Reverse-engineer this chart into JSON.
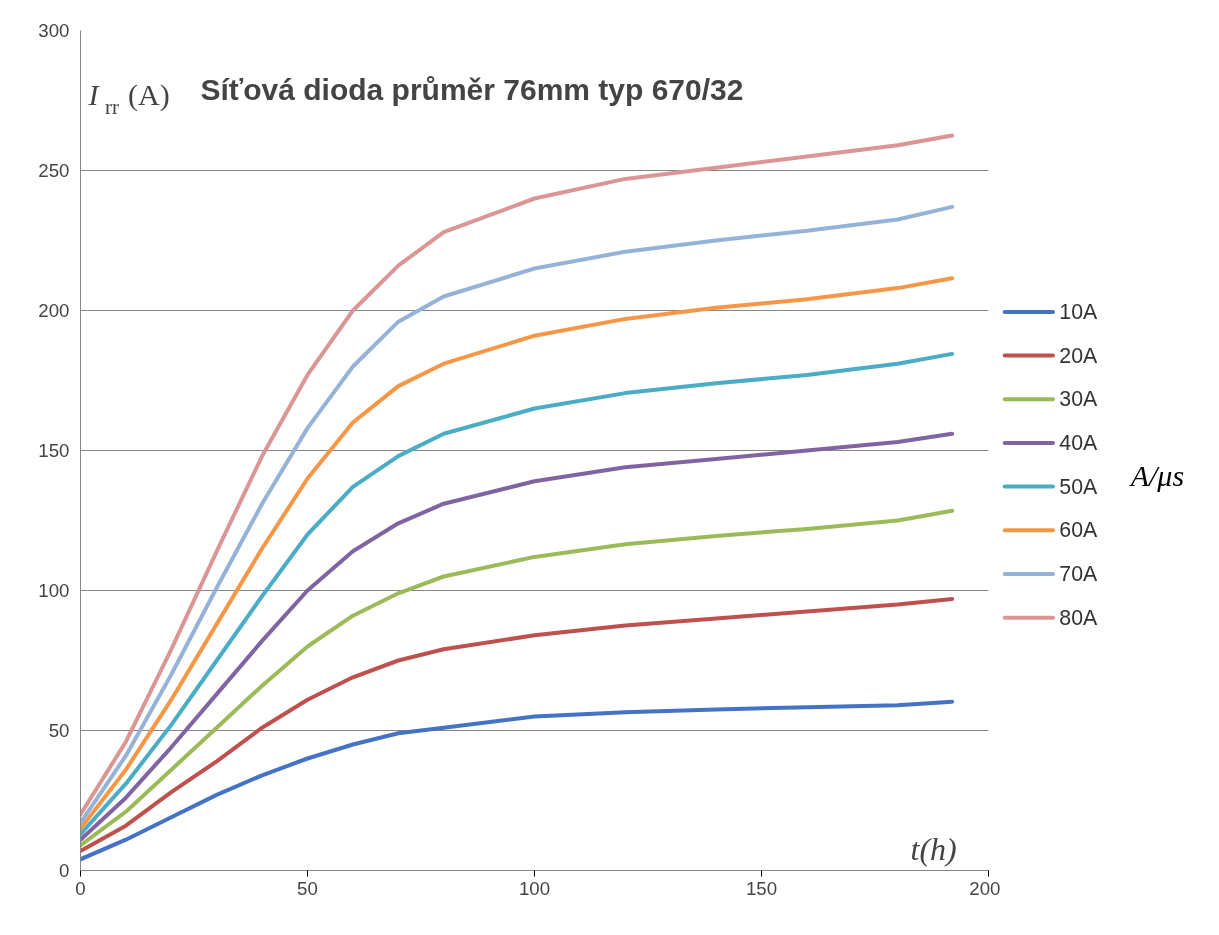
{
  "chart_data": {
    "type": "line",
    "title": "Síťová dioda průměr 76mm typ 670/32",
    "xlabel": "t(h)",
    "ylabel": "I$_{rr}$(A)",
    "annotations": [
      "A/μs"
    ],
    "x": [
      0,
      10,
      20,
      30,
      40,
      50,
      60,
      70,
      80,
      100,
      120,
      140,
      160,
      180,
      192
    ],
    "series": [
      {
        "name": "10A",
        "color": "#4472c4",
        "values": [
          4,
          11,
          19,
          27,
          34,
          40,
          45,
          49,
          51,
          55,
          56.5,
          57.5,
          58.3,
          59,
          60.3
        ]
      },
      {
        "name": "20A",
        "color": "#c0504d",
        "values": [
          7,
          16,
          28,
          39,
          51,
          61,
          69,
          75,
          79,
          84,
          87.5,
          90,
          92.5,
          95,
          97
        ]
      },
      {
        "name": "30A",
        "color": "#9bbb59",
        "values": [
          9,
          21,
          36,
          51,
          66,
          80,
          91,
          99,
          105,
          112,
          116.5,
          119.5,
          122,
          125,
          128.5
        ]
      },
      {
        "name": "40A",
        "color": "#8064a2",
        "values": [
          11,
          26,
          44,
          63,
          82,
          100,
          114,
          124,
          131,
          139,
          144,
          147,
          150,
          153,
          156
        ]
      },
      {
        "name": "50A",
        "color": "#4bacc6",
        "values": [
          13,
          31,
          52,
          75,
          98,
          120,
          137,
          148,
          156,
          165,
          170.5,
          174,
          177,
          181,
          184.5
        ]
      },
      {
        "name": "60A",
        "color": "#f79646",
        "values": [
          15,
          36,
          61,
          88,
          115,
          140,
          160,
          173,
          181,
          191,
          197,
          201,
          204,
          208,
          211.5
        ]
      },
      {
        "name": "70A",
        "color": "#95b3d7",
        "values": [
          17,
          41,
          70,
          101,
          131,
          158,
          180,
          196,
          205,
          215,
          221,
          225,
          228.5,
          232.5,
          237
        ]
      },
      {
        "name": "80A",
        "color": "#d99694",
        "values": [
          20,
          46,
          79,
          114,
          148,
          177,
          200,
          216,
          228,
          240,
          247,
          251,
          255,
          259,
          262.5
        ]
      }
    ],
    "xlim": [
      0,
      200
    ],
    "xticks": [
      0,
      50,
      100,
      150,
      200
    ],
    "ylim": [
      0,
      300
    ],
    "yticks": [
      0,
      50,
      100,
      150,
      200,
      250,
      300
    ],
    "grid": "y",
    "legend": "right"
  }
}
